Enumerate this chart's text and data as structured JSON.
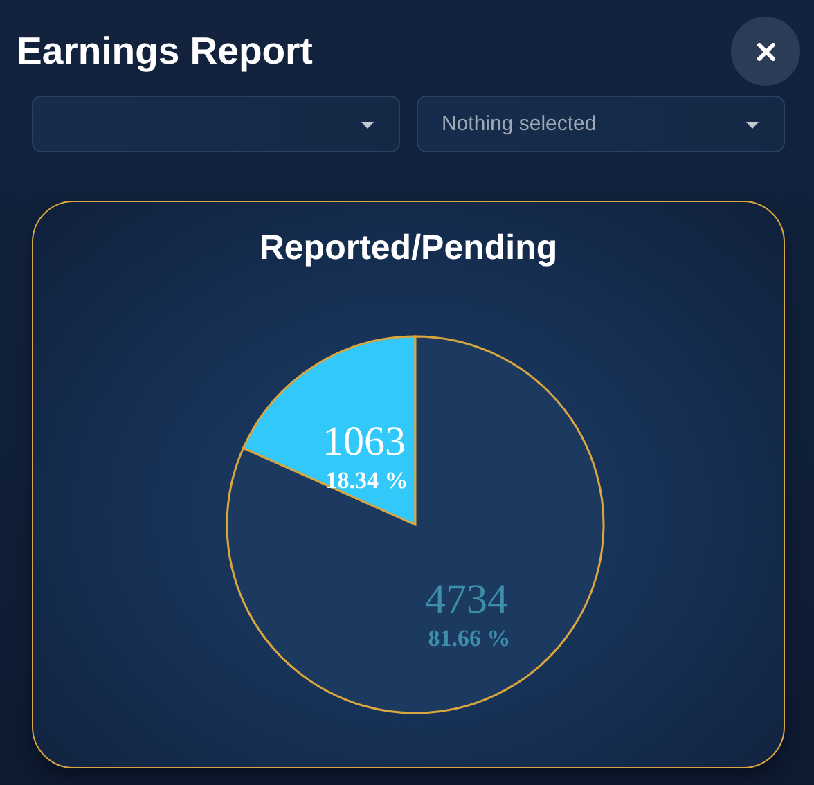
{
  "chart_data": {
    "type": "pie",
    "title": "Earnings Report",
    "subtitle": "Reported/Pending",
    "categories": [
      null,
      null
    ],
    "values": [
      1063,
      4734
    ],
    "colors": [
      "#33c8fa",
      "#1c3960"
    ],
    "value_labels": [
      "1063\n18.34 %",
      "4734\n81.66 %"
    ],
    "annotations": [
      "Nothing selected"
    ]
  }
}
